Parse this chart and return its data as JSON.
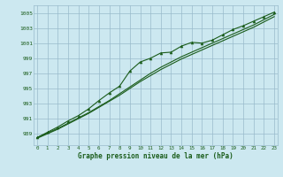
{
  "xlabel": "Graphe pression niveau de la mer (hPa)",
  "background_color": "#cce8f0",
  "grid_color": "#99bbcc",
  "line_color": "#1a5c1a",
  "x_data": [
    0,
    1,
    2,
    3,
    4,
    5,
    6,
    7,
    8,
    9,
    10,
    11,
    12,
    13,
    14,
    15,
    16,
    17,
    18,
    19,
    20,
    21,
    22,
    23
  ],
  "y_line1": [
    988.5,
    989.1,
    989.7,
    990.4,
    991.1,
    991.8,
    992.6,
    993.4,
    994.3,
    995.2,
    996.1,
    997.0,
    997.8,
    998.5,
    999.2,
    999.8,
    1000.4,
    1001.0,
    1001.6,
    1002.2,
    1002.8,
    1003.4,
    1004.1,
    1004.8
  ],
  "y_line2": [
    988.4,
    989.0,
    989.6,
    990.3,
    991.0,
    991.7,
    992.5,
    993.3,
    994.1,
    995.0,
    995.9,
    996.7,
    997.5,
    998.2,
    998.9,
    999.5,
    1000.1,
    1000.7,
    1001.3,
    1001.9,
    1002.5,
    1003.1,
    1003.8,
    1004.5
  ],
  "y_markers": [
    988.5,
    989.2,
    989.9,
    990.7,
    991.4,
    992.3,
    993.4,
    994.4,
    995.3,
    997.3,
    998.5,
    999.0,
    999.7,
    999.8,
    1000.6,
    1001.1,
    1001.0,
    1001.4,
    1002.1,
    1002.8,
    1003.3,
    1003.9,
    1004.5,
    1005.1
  ],
  "ylim": [
    987.5,
    1006.0
  ],
  "yticks": [
    989,
    991,
    993,
    995,
    997,
    999,
    1001,
    1003,
    1005
  ],
  "xlim": [
    -0.3,
    23.3
  ],
  "xticks": [
    0,
    1,
    2,
    3,
    4,
    5,
    6,
    7,
    8,
    9,
    10,
    11,
    12,
    13,
    14,
    15,
    16,
    17,
    18,
    19,
    20,
    21,
    22,
    23
  ]
}
